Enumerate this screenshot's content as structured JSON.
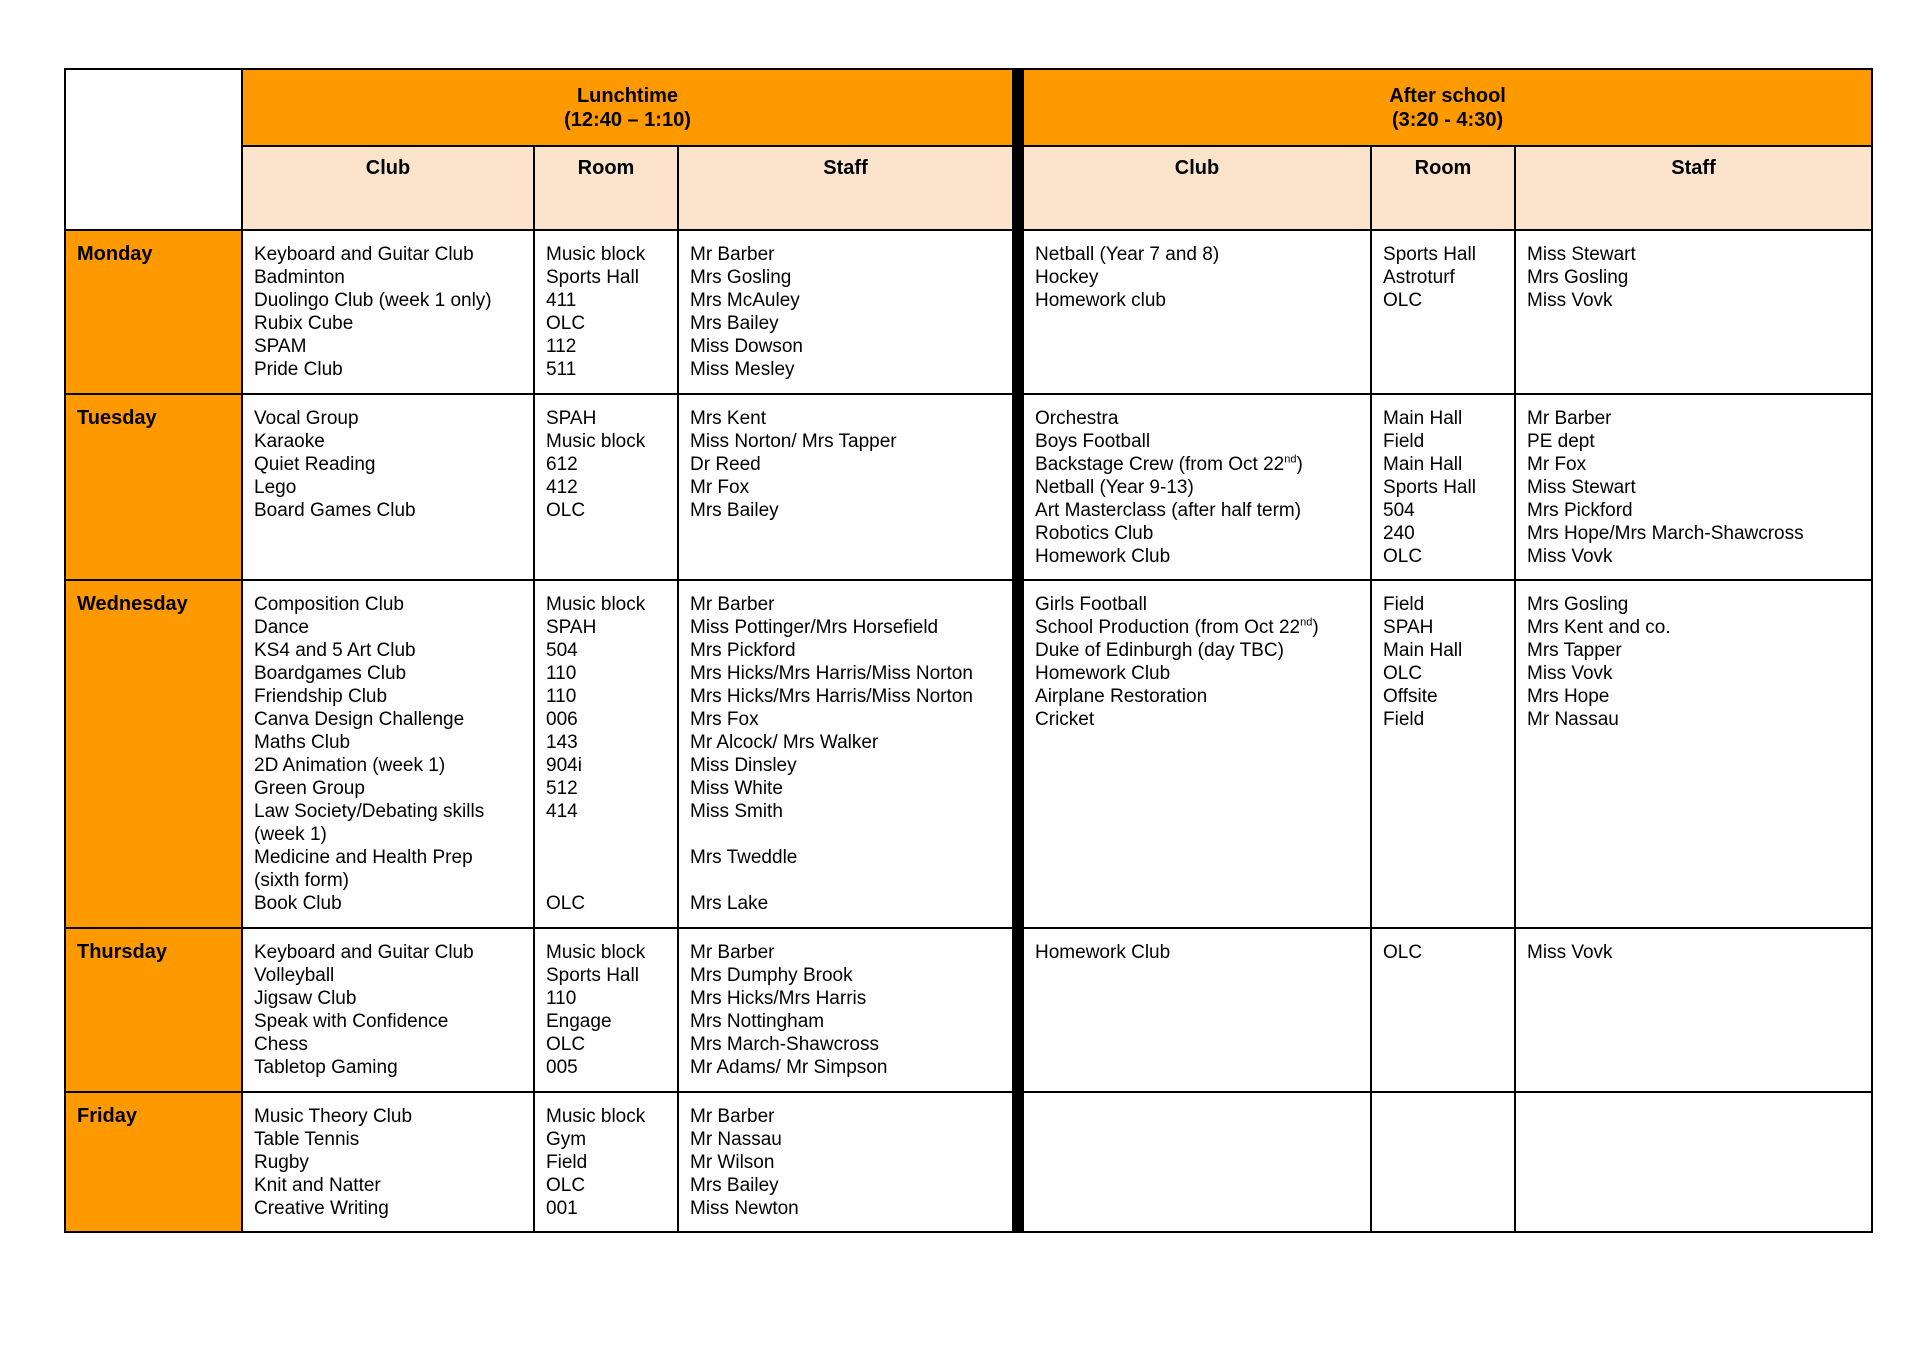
{
  "header": {
    "lunchtime": {
      "title": "Lunchtime",
      "time": "(12:40 – 1:10)"
    },
    "after_school": {
      "title": "After school",
      "time": "(3:20 - 4:30)"
    },
    "columns": [
      "Club",
      "Room",
      "Staff",
      "Club",
      "Room",
      "Staff"
    ]
  },
  "colors": {
    "section": "#ff9900",
    "column_header": "#fbe4cb"
  },
  "days": [
    {
      "day": "Monday",
      "lunch_club": [
        "Keyboard and Guitar Club",
        "Badminton",
        "Duolingo Club (week 1 only)",
        "Rubix Cube",
        "SPAM",
        "Pride Club"
      ],
      "lunch_room": [
        "Music block",
        "Sports Hall",
        "411",
        "OLC",
        "112",
        "511"
      ],
      "lunch_staff": [
        "Mr Barber",
        "Mrs Gosling",
        "Mrs McAuley",
        "Mrs Bailey",
        "Miss Dowson",
        "Miss Mesley"
      ],
      "after_club": [
        "Netball (Year 7 and 8)",
        "Hockey",
        "Homework club"
      ],
      "after_room": [
        "Sports Hall",
        "Astroturf",
        "OLC"
      ],
      "after_staff": [
        "Miss Stewart",
        "Mrs Gosling",
        "Miss Vovk"
      ]
    },
    {
      "day": "Tuesday",
      "lunch_club": [
        "Vocal Group",
        "Karaoke",
        "Quiet Reading",
        "Lego",
        "Board Games Club"
      ],
      "lunch_room": [
        "SPAH",
        "Music block",
        "612",
        "412",
        "OLC"
      ],
      "lunch_staff": [
        "Mrs Kent",
        "Miss Norton/ Mrs Tapper",
        "Dr Reed",
        "Mr Fox",
        "Mrs Bailey"
      ],
      "after_club": [
        "Orchestra",
        "Boys Football",
        {
          "t": "Backstage Crew (from Oct 22",
          "sup": "nd",
          "t2": ")"
        },
        "Netball (Year 9-13)",
        "Art Masterclass (after half term)",
        "Robotics Club",
        "Homework Club"
      ],
      "after_room": [
        "Main Hall",
        "Field",
        "Main Hall",
        "Sports Hall",
        "504",
        "240",
        "OLC"
      ],
      "after_staff": [
        "Mr Barber",
        "PE dept",
        "Mr Fox",
        "Miss Stewart",
        "Mrs Pickford",
        "Mrs Hope/Mrs March-Shawcross",
        "Miss Vovk"
      ]
    },
    {
      "day": "Wednesday",
      "lunch_club": [
        "Composition Club",
        "Dance",
        "KS4 and 5 Art Club",
        "Boardgames Club",
        "Friendship Club",
        "Canva Design Challenge",
        "Maths Club",
        "2D Animation (week 1)",
        "Green Group",
        "Law Society/Debating skills",
        "(week 1)",
        "Medicine and Health Prep",
        "(sixth form)",
        "Book Club"
      ],
      "lunch_room": [
        "Music block",
        "SPAH",
        "504",
        "110",
        "110",
        "006",
        "143",
        "904i",
        "512",
        "414",
        "",
        "",
        "",
        "OLC"
      ],
      "lunch_staff": [
        "Mr Barber",
        "Miss Pottinger/Mrs Horsefield",
        "Mrs Pickford",
        "Mrs Hicks/Mrs Harris/Miss Norton",
        "Mrs Hicks/Mrs Harris/Miss Norton",
        "Mrs Fox",
        "Mr Alcock/ Mrs Walker",
        "Miss Dinsley",
        "Miss White",
        "Miss Smith",
        "",
        "Mrs Tweddle",
        "",
        "Mrs Lake"
      ],
      "after_club": [
        "Girls Football",
        {
          "t": "School Production (from Oct 22",
          "sup": "nd",
          "t2": ")"
        },
        "Duke of Edinburgh (day TBC)",
        "Homework Club",
        "Airplane Restoration",
        "Cricket"
      ],
      "after_room": [
        "Field",
        "SPAH",
        "Main Hall",
        "OLC",
        "Offsite",
        "Field"
      ],
      "after_staff": [
        "Mrs Gosling",
        "Mrs Kent and co.",
        "Mrs Tapper",
        "Miss Vovk",
        "Mrs Hope",
        "Mr Nassau"
      ]
    },
    {
      "day": "Thursday",
      "lunch_club": [
        "Keyboard and Guitar Club",
        "Volleyball",
        "Jigsaw Club",
        "Speak with Confidence",
        "Chess",
        "Tabletop Gaming"
      ],
      "lunch_room": [
        "Music block",
        "Sports Hall",
        "110",
        "Engage",
        "OLC",
        "005"
      ],
      "lunch_staff": [
        "Mr Barber",
        "Mrs Dumphy Brook",
        "Mrs Hicks/Mrs Harris",
        "Mrs Nottingham",
        "Mrs March-Shawcross",
        "Mr Adams/ Mr Simpson"
      ],
      "after_club": [
        "Homework Club"
      ],
      "after_room": [
        "OLC"
      ],
      "after_staff": [
        "Miss Vovk"
      ]
    },
    {
      "day": "Friday",
      "lunch_club": [
        "Music Theory Club",
        "Table Tennis",
        "Rugby",
        "Knit and Natter",
        "Creative Writing"
      ],
      "lunch_room": [
        "Music block",
        "Gym",
        "Field",
        "OLC",
        "001"
      ],
      "lunch_staff": [
        "Mr Barber",
        "Mr Nassau",
        "Mr Wilson",
        "Mrs Bailey",
        "Miss Newton"
      ],
      "after_club": [],
      "after_room": [],
      "after_staff": []
    }
  ]
}
